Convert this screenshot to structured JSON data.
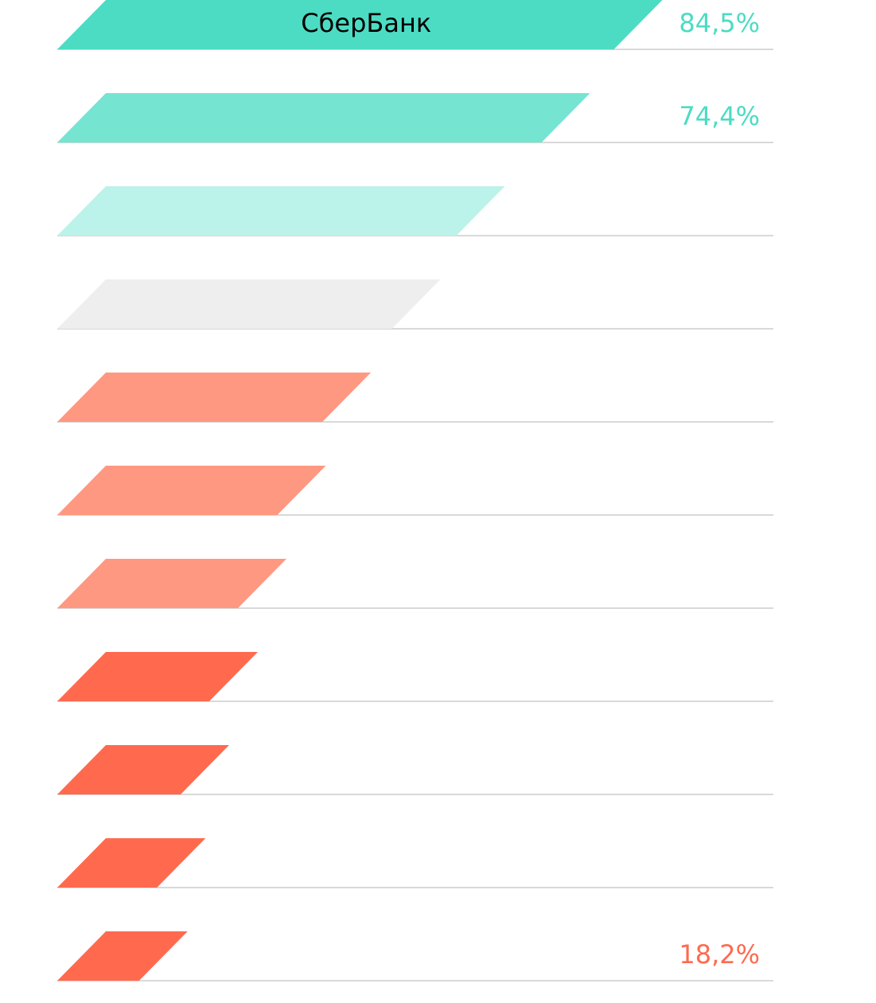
{
  "chart_data": {
    "type": "bar",
    "orientation": "horizontal",
    "grid": false,
    "legend": "none",
    "xlim": [
      0,
      100
    ],
    "categories": [
      "СберБанк",
      "",
      "",
      "",
      "",
      "",
      "",
      "",
      "",
      "",
      ""
    ],
    "values": [
      84.5,
      74.4,
      62.5,
      53.5,
      43.8,
      37.5,
      32.0,
      28.0,
      24.0,
      20.7,
      18.2
    ],
    "value_labels": [
      "84,5%",
      "74,4%",
      "",
      "",
      "",
      "",
      "",
      "",
      "",
      "",
      "18,2%"
    ],
    "bar_colors": [
      "#4cdcc3",
      "#75e4d1",
      "#bbf2e9",
      "#eeeeee",
      "#ff9881",
      "#ff9881",
      "#ff9881",
      "#ff6a4f",
      "#ff6a4f",
      "#ff6a4f",
      "#ff6a4f"
    ],
    "label_colors": [
      "#4cdcc3",
      "#4cdcc3",
      "",
      "",
      "",
      "",
      "",
      "",
      "",
      "",
      "#ff6a4f"
    ],
    "baseline_color": "#d9d9d9",
    "category_label_color": "#000000"
  }
}
